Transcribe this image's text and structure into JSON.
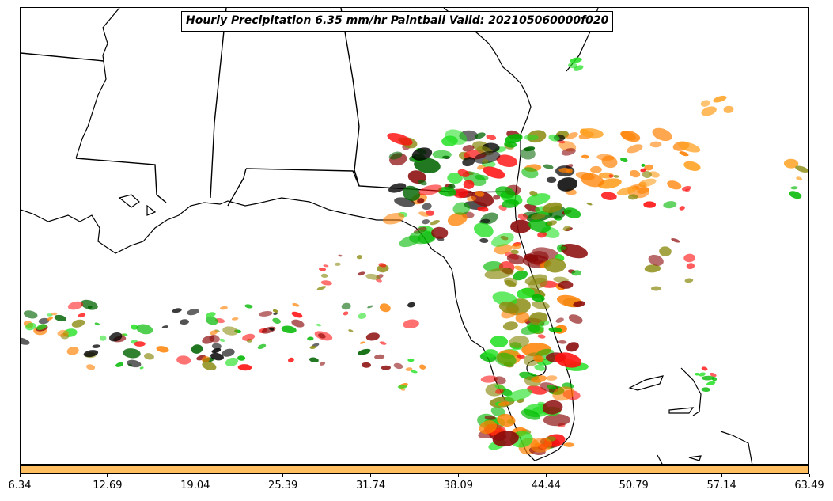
{
  "title": "Hourly Precipitation 6.35 mm/hr Paintball Valid: 202105060000f020",
  "colorbar": {
    "color": "#ffbf60",
    "ticks": [
      "6.34",
      "12.69",
      "19.04",
      "25.39",
      "31.74",
      "38.09",
      "44.44",
      "50.79",
      "57.14",
      "63.49"
    ]
  },
  "colors": {
    "red": "#ff1010",
    "dark_red": "#8b0a0a",
    "orange": "#ff8000",
    "light_orange": "#ffa020",
    "green": "#00b800",
    "bright_green": "#20e020",
    "olive": "#8a8a10",
    "dark_green": "#006400",
    "black": "#000000"
  }
}
